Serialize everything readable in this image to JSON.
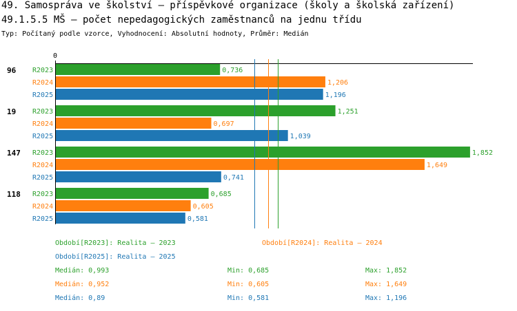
{
  "header": {
    "title": "49. Samospráva ve školství – příspěvkové organizace (školy a školská zařízení)",
    "subtitle": "49.1.5.5 MŠ – počet nepedagogických zaměstnanců na jednu třídu",
    "type_line": "Typ: Počítaný podle vzorce, Vyhodnocení: Absolutní hodnoty, Průměr: Medián"
  },
  "colors": {
    "R2023": "#2ca02c",
    "R2024": "#ff7f0e",
    "R2025": "#1f77b4"
  },
  "chart_data": {
    "type": "bar",
    "orientation": "horizontal",
    "x_tick_labels": [
      "0"
    ],
    "xlim": [
      0,
      1.9
    ],
    "series_names": [
      "R2023",
      "R2024",
      "R2025"
    ],
    "groups": [
      {
        "label": "96",
        "values": [
          0.736,
          1.206,
          1.196
        ],
        "value_labels": [
          "0,736",
          "1,206",
          "1,196"
        ]
      },
      {
        "label": "19",
        "values": [
          1.251,
          0.697,
          1.039
        ],
        "value_labels": [
          "1,251",
          "0,697",
          "1,039"
        ]
      },
      {
        "label": "147",
        "values": [
          1.852,
          1.649,
          0.741
        ],
        "value_labels": [
          "1,852",
          "1,649",
          "0,741"
        ]
      },
      {
        "label": "118",
        "values": [
          0.685,
          0.605,
          0.581
        ],
        "value_labels": [
          "0,685",
          "0,605",
          "0,581"
        ]
      }
    ],
    "median_lines": [
      {
        "series": "R2023",
        "value": 0.993
      },
      {
        "series": "R2024",
        "value": 0.952
      },
      {
        "series": "R2025",
        "value": 0.89
      }
    ]
  },
  "legend": {
    "periods": [
      "Období[R2023]: Realita – 2023",
      "Období[R2024]: Realita – 2024",
      "Období[R2025]: Realita – 2025"
    ],
    "stats": [
      {
        "median": "Medián: 0,993",
        "min": "Min: 0,685",
        "max": "Max: 1,852"
      },
      {
        "median": "Medián: 0,952",
        "min": "Min: 0,605",
        "max": "Max: 1,649"
      },
      {
        "median": "Medián: 0,89",
        "min": "Min: 0,581",
        "max": "Max: 1,196"
      }
    ]
  }
}
